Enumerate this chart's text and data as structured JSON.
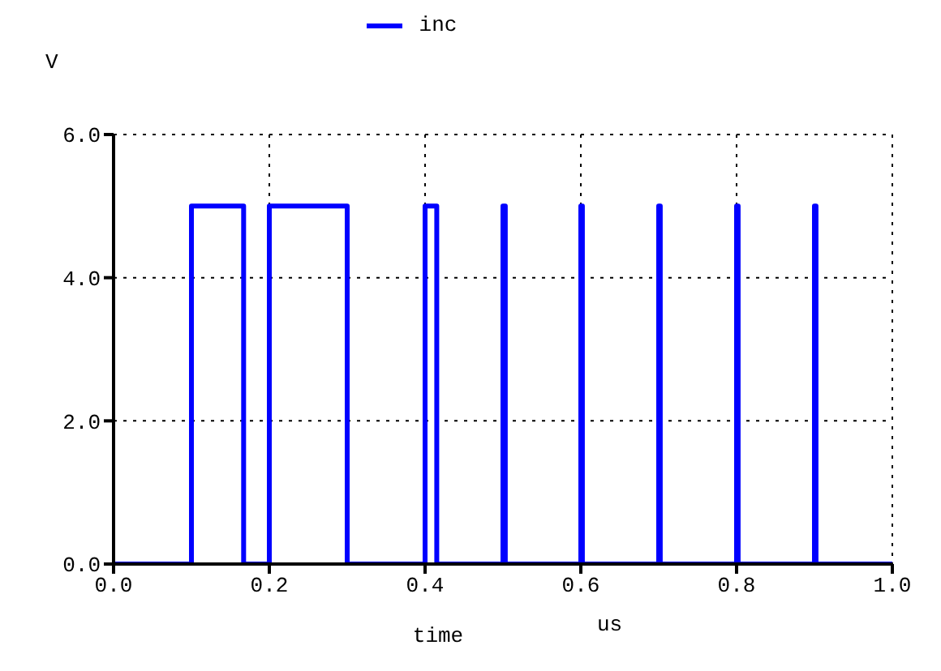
{
  "chart_data": {
    "type": "line",
    "xlabel": "time",
    "ylabel": "V",
    "annotations": [
      "us"
    ],
    "x": [
      0,
      0.1,
      0.1,
      0.167,
      0.167,
      0.2,
      0.2,
      0.3,
      0.3,
      0.4,
      0.4,
      0.415,
      0.415,
      0.5,
      0.5,
      0.503,
      0.503,
      0.6,
      0.6,
      0.602,
      0.602,
      0.7,
      0.7,
      0.702,
      0.702,
      0.8,
      0.8,
      0.802,
      0.802,
      0.9,
      0.9,
      0.902,
      0.902,
      1.0
    ],
    "series": [
      {
        "name": "inc",
        "color": "#0000ff",
        "values": [
          0,
          0,
          5,
          5,
          0,
          0,
          5,
          5,
          0,
          0,
          5,
          5,
          0,
          0,
          5,
          5,
          0,
          0,
          5,
          5,
          0,
          0,
          5,
          5,
          0,
          0,
          5,
          5,
          0,
          0,
          5,
          5,
          0,
          0
        ]
      }
    ],
    "xlim": [
      0,
      1
    ],
    "ylim": [
      0,
      6
    ],
    "xticks": [
      {
        "value": 0,
        "label": "0.0"
      },
      {
        "value": 0.2,
        "label": "0.2"
      },
      {
        "value": 0.4,
        "label": "0.4"
      },
      {
        "value": 0.6,
        "label": "0.6"
      },
      {
        "value": 0.8,
        "label": "0.8"
      },
      {
        "value": 1,
        "label": "1.0"
      }
    ],
    "yticks": [
      {
        "value": 0,
        "label": "0.0"
      },
      {
        "value": 2,
        "label": "2.0"
      },
      {
        "value": 4,
        "label": "4.0"
      },
      {
        "value": 6,
        "label": "6.0"
      }
    ],
    "grid": true,
    "legend": "top",
    "marker": "none",
    "line_style": "solid"
  }
}
